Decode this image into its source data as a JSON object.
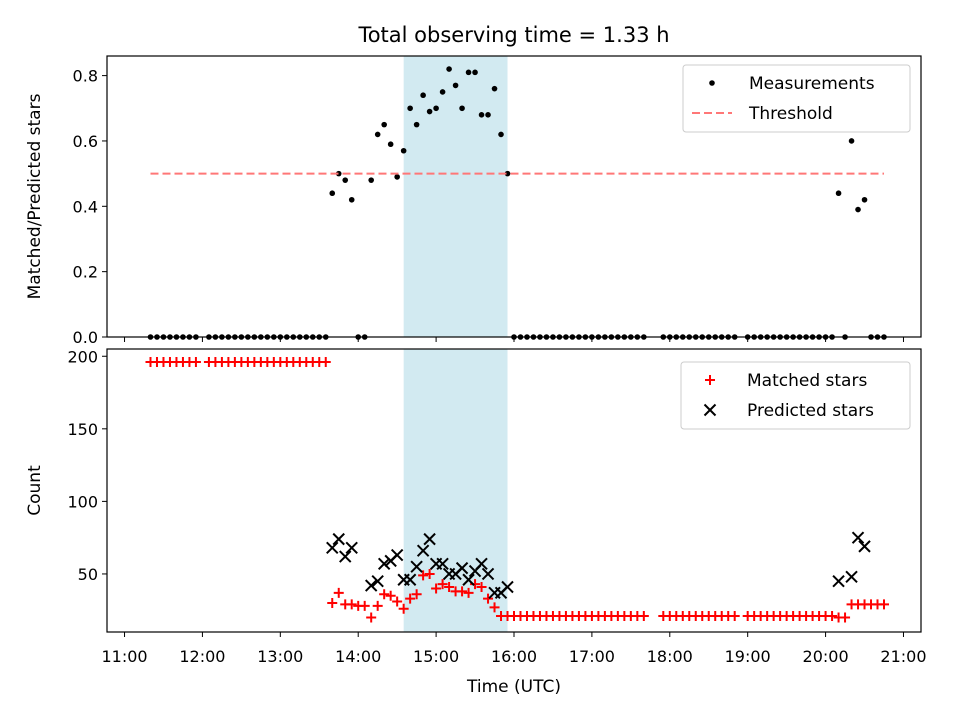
{
  "figure": {
    "title": "Total observing time = 1.33 h",
    "xlabel": "Time (UTC)",
    "x_ticks": [
      "11:00",
      "12:00",
      "13:00",
      "14:00",
      "15:00",
      "16:00",
      "17:00",
      "18:00",
      "19:00",
      "20:00",
      "21:00"
    ],
    "highlight": {
      "start": "14:35",
      "end": "15:55",
      "color": "#add8e6"
    }
  },
  "chart_data": [
    {
      "type": "scatter",
      "ylabel": "Matched/Predicted stars",
      "ylim": [
        0,
        0.86
      ],
      "y_ticks": [
        "0.0",
        "0.2",
        "0.4",
        "0.6",
        "0.8"
      ],
      "y_tick_values": [
        0,
        0.2,
        0.4,
        0.6,
        0.8
      ],
      "legend": {
        "placement": "top-right"
      },
      "series": [
        {
          "name": "Measurements",
          "color": "#000000",
          "marker": "dot",
          "points": [
            [
              "11:20",
              0
            ],
            [
              "11:25",
              0
            ],
            [
              "11:30",
              0
            ],
            [
              "11:35",
              0
            ],
            [
              "11:40",
              0
            ],
            [
              "11:45",
              0
            ],
            [
              "11:50",
              0
            ],
            [
              "11:55",
              0
            ],
            [
              "12:05",
              0
            ],
            [
              "12:10",
              0
            ],
            [
              "12:15",
              0
            ],
            [
              "12:20",
              0
            ],
            [
              "12:25",
              0
            ],
            [
              "12:30",
              0
            ],
            [
              "12:35",
              0
            ],
            [
              "12:40",
              0
            ],
            [
              "12:45",
              0
            ],
            [
              "12:50",
              0
            ],
            [
              "12:55",
              0
            ],
            [
              "13:00",
              0
            ],
            [
              "13:05",
              0
            ],
            [
              "13:10",
              0
            ],
            [
              "13:15",
              0
            ],
            [
              "13:20",
              0
            ],
            [
              "13:25",
              0
            ],
            [
              "13:30",
              0
            ],
            [
              "13:35",
              0
            ],
            [
              "13:40",
              0.44
            ],
            [
              "13:45",
              0.5
            ],
            [
              "13:50",
              0.48
            ],
            [
              "13:55",
              0.42
            ],
            [
              "14:00",
              0
            ],
            [
              "14:05",
              0
            ],
            [
              "14:10",
              0.48
            ],
            [
              "14:15",
              0.62
            ],
            [
              "14:20",
              0.65
            ],
            [
              "14:25",
              0.59
            ],
            [
              "14:30",
              0.49
            ],
            [
              "14:35",
              0.57
            ],
            [
              "14:40",
              0.7
            ],
            [
              "14:45",
              0.65
            ],
            [
              "14:50",
              0.74
            ],
            [
              "14:55",
              0.69
            ],
            [
              "15:00",
              0.7
            ],
            [
              "15:05",
              0.75
            ],
            [
              "15:10",
              0.82
            ],
            [
              "15:15",
              0.77
            ],
            [
              "15:20",
              0.7
            ],
            [
              "15:25",
              0.81
            ],
            [
              "15:30",
              0.81
            ],
            [
              "15:35",
              0.68
            ],
            [
              "15:40",
              0.68
            ],
            [
              "15:45",
              0.76
            ],
            [
              "15:50",
              0.62
            ],
            [
              "15:55",
              0.5
            ],
            [
              "16:00",
              0
            ],
            [
              "16:05",
              0
            ],
            [
              "16:10",
              0
            ],
            [
              "16:15",
              0
            ],
            [
              "16:20",
              0
            ],
            [
              "16:25",
              0
            ],
            [
              "16:30",
              0
            ],
            [
              "16:35",
              0
            ],
            [
              "16:40",
              0
            ],
            [
              "16:45",
              0
            ],
            [
              "16:50",
              0
            ],
            [
              "16:55",
              0
            ],
            [
              "17:00",
              0
            ],
            [
              "17:05",
              0
            ],
            [
              "17:10",
              0
            ],
            [
              "17:15",
              0
            ],
            [
              "17:20",
              0
            ],
            [
              "17:25",
              0
            ],
            [
              "17:30",
              0
            ],
            [
              "17:35",
              0
            ],
            [
              "17:40",
              0
            ],
            [
              "17:55",
              0
            ],
            [
              "18:00",
              0
            ],
            [
              "18:05",
              0
            ],
            [
              "18:10",
              0
            ],
            [
              "18:15",
              0
            ],
            [
              "18:20",
              0
            ],
            [
              "18:25",
              0
            ],
            [
              "18:30",
              0
            ],
            [
              "18:35",
              0
            ],
            [
              "18:40",
              0
            ],
            [
              "18:45",
              0
            ],
            [
              "18:50",
              0
            ],
            [
              "19:00",
              0
            ],
            [
              "19:05",
              0
            ],
            [
              "19:10",
              0
            ],
            [
              "19:15",
              0
            ],
            [
              "19:20",
              0
            ],
            [
              "19:25",
              0
            ],
            [
              "19:30",
              0
            ],
            [
              "19:35",
              0
            ],
            [
              "19:40",
              0
            ],
            [
              "19:45",
              0
            ],
            [
              "19:50",
              0
            ],
            [
              "19:55",
              0
            ],
            [
              "20:00",
              0
            ],
            [
              "20:05",
              0
            ],
            [
              "20:10",
              0.44
            ],
            [
              "20:15",
              0
            ],
            [
              "20:20",
              0.6
            ],
            [
              "20:25",
              0.39
            ],
            [
              "20:30",
              0.42
            ],
            [
              "20:35",
              0
            ],
            [
              "20:40",
              0
            ],
            [
              "20:45",
              0
            ]
          ]
        },
        {
          "name": "Threshold",
          "color": "#ff7777",
          "line": "dashed",
          "points": [
            [
              "11:20",
              0.5
            ],
            [
              "20:45",
              0.5
            ]
          ]
        }
      ]
    },
    {
      "type": "scatter",
      "ylabel": "Count",
      "ylim": [
        10,
        205
      ],
      "y_ticks": [
        "50",
        "100",
        "150",
        "200"
      ],
      "y_tick_values": [
        50,
        100,
        150,
        200
      ],
      "legend": {
        "placement": "top-right"
      },
      "series": [
        {
          "name": "Matched stars",
          "color": "#ff0000",
          "marker": "plus",
          "points": [
            [
              "11:20",
              196
            ],
            [
              "11:25",
              196
            ],
            [
              "11:30",
              196
            ],
            [
              "11:35",
              196
            ],
            [
              "11:40",
              196
            ],
            [
              "11:45",
              196
            ],
            [
              "11:50",
              196
            ],
            [
              "11:55",
              196
            ],
            [
              "12:05",
              196
            ],
            [
              "12:10",
              196
            ],
            [
              "12:15",
              196
            ],
            [
              "12:20",
              196
            ],
            [
              "12:25",
              196
            ],
            [
              "12:30",
              196
            ],
            [
              "12:35",
              196
            ],
            [
              "12:40",
              196
            ],
            [
              "12:45",
              196
            ],
            [
              "12:50",
              196
            ],
            [
              "12:55",
              196
            ],
            [
              "13:00",
              196
            ],
            [
              "13:05",
              196
            ],
            [
              "13:10",
              196
            ],
            [
              "13:15",
              196
            ],
            [
              "13:20",
              196
            ],
            [
              "13:25",
              196
            ],
            [
              "13:30",
              196
            ],
            [
              "13:35",
              196
            ],
            [
              "13:40",
              30
            ],
            [
              "13:45",
              37
            ],
            [
              "13:50",
              29
            ],
            [
              "13:55",
              29
            ],
            [
              "14:00",
              28
            ],
            [
              "14:05",
              28
            ],
            [
              "14:10",
              20
            ],
            [
              "14:15",
              28
            ],
            [
              "14:20",
              36
            ],
            [
              "14:25",
              35
            ],
            [
              "14:30",
              31
            ],
            [
              "14:35",
              26
            ],
            [
              "14:40",
              33
            ],
            [
              "14:45",
              36
            ],
            [
              "14:50",
              49
            ],
            [
              "14:55",
              50
            ],
            [
              "15:00",
              40
            ],
            [
              "15:05",
              43
            ],
            [
              "15:10",
              41
            ],
            [
              "15:15",
              38
            ],
            [
              "15:20",
              38
            ],
            [
              "15:25",
              37
            ],
            [
              "15:30",
              43
            ],
            [
              "15:35",
              41
            ],
            [
              "15:40",
              33
            ],
            [
              "15:45",
              27
            ],
            [
              "15:50",
              21
            ],
            [
              "15:55",
              21
            ],
            [
              "16:00",
              21
            ],
            [
              "16:05",
              21
            ],
            [
              "16:10",
              21
            ],
            [
              "16:15",
              21
            ],
            [
              "16:20",
              21
            ],
            [
              "16:25",
              21
            ],
            [
              "16:30",
              21
            ],
            [
              "16:35",
              21
            ],
            [
              "16:40",
              21
            ],
            [
              "16:45",
              21
            ],
            [
              "16:50",
              21
            ],
            [
              "16:55",
              21
            ],
            [
              "17:00",
              21
            ],
            [
              "17:05",
              21
            ],
            [
              "17:10",
              21
            ],
            [
              "17:15",
              21
            ],
            [
              "17:20",
              21
            ],
            [
              "17:25",
              21
            ],
            [
              "17:30",
              21
            ],
            [
              "17:35",
              21
            ],
            [
              "17:40",
              21
            ],
            [
              "17:55",
              21
            ],
            [
              "18:00",
              21
            ],
            [
              "18:05",
              21
            ],
            [
              "18:10",
              21
            ],
            [
              "18:15",
              21
            ],
            [
              "18:20",
              21
            ],
            [
              "18:25",
              21
            ],
            [
              "18:30",
              21
            ],
            [
              "18:35",
              21
            ],
            [
              "18:40",
              21
            ],
            [
              "18:45",
              21
            ],
            [
              "18:50",
              21
            ],
            [
              "19:00",
              21
            ],
            [
              "19:05",
              21
            ],
            [
              "19:10",
              21
            ],
            [
              "19:15",
              21
            ],
            [
              "19:20",
              21
            ],
            [
              "19:25",
              21
            ],
            [
              "19:30",
              21
            ],
            [
              "19:35",
              21
            ],
            [
              "19:40",
              21
            ],
            [
              "19:45",
              21
            ],
            [
              "19:50",
              21
            ],
            [
              "19:55",
              21
            ],
            [
              "20:00",
              21
            ],
            [
              "20:05",
              21
            ],
            [
              "20:10",
              20
            ],
            [
              "20:15",
              20
            ],
            [
              "20:20",
              29
            ],
            [
              "20:25",
              29
            ],
            [
              "20:30",
              29
            ],
            [
              "20:35",
              29
            ],
            [
              "20:40",
              29
            ],
            [
              "20:45",
              29
            ]
          ]
        },
        {
          "name": "Predicted stars",
          "color": "#000000",
          "marker": "x",
          "points": [
            [
              "13:40",
              68
            ],
            [
              "13:45",
              74
            ],
            [
              "13:50",
              62
            ],
            [
              "13:55",
              68
            ],
            [
              "14:10",
              42
            ],
            [
              "14:15",
              45
            ],
            [
              "14:20",
              57
            ],
            [
              "14:25",
              59
            ],
            [
              "14:30",
              63
            ],
            [
              "14:35",
              46
            ],
            [
              "14:40",
              46
            ],
            [
              "14:45",
              55
            ],
            [
              "14:50",
              66
            ],
            [
              "14:55",
              74
            ],
            [
              "15:00",
              57
            ],
            [
              "15:05",
              57
            ],
            [
              "15:10",
              50
            ],
            [
              "15:15",
              50
            ],
            [
              "15:20",
              54
            ],
            [
              "15:25",
              46
            ],
            [
              "15:30",
              52
            ],
            [
              "15:35",
              57
            ],
            [
              "15:40",
              50
            ],
            [
              "15:45",
              37
            ],
            [
              "15:50",
              37
            ],
            [
              "15:55",
              41
            ],
            [
              "20:10",
              45
            ],
            [
              "20:20",
              48
            ],
            [
              "20:25",
              75
            ],
            [
              "20:30",
              69
            ]
          ]
        }
      ]
    }
  ]
}
